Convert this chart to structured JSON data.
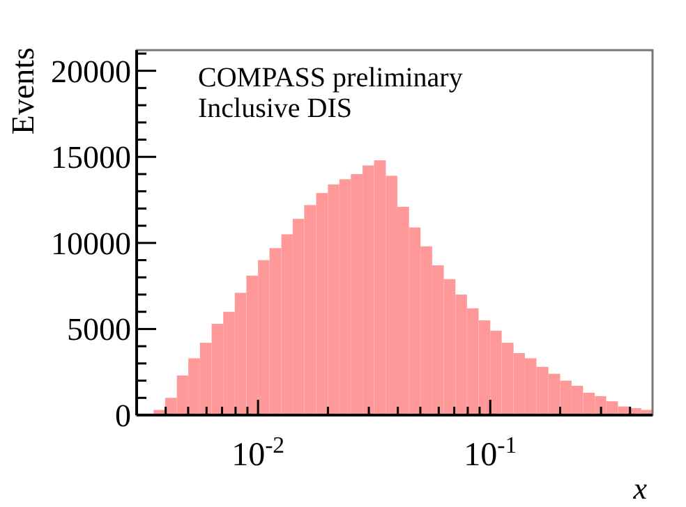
{
  "chart_data": {
    "type": "histogram",
    "xlabel": "x",
    "ylabel": "Events",
    "log": "x",
    "color": "#ff9999",
    "grid": false,
    "annotations": [
      "COMPASS preliminary",
      "Inclusive DIS"
    ],
    "xlim": [
      0.003,
      0.5
    ],
    "ylim": [
      0,
      21200
    ],
    "xticks": [
      {
        "value": 0.004,
        "label": null
      },
      {
        "value": 0.005,
        "label": null
      },
      {
        "value": 0.006,
        "label": null
      },
      {
        "value": 0.007,
        "label": null
      },
      {
        "value": 0.008,
        "label": null
      },
      {
        "value": 0.009,
        "label": null
      },
      {
        "value": 0.01,
        "label": "10$^{-2}$"
      },
      {
        "value": 0.02,
        "label": null
      },
      {
        "value": 0.03,
        "label": null
      },
      {
        "value": 0.04,
        "label": null
      },
      {
        "value": 0.05,
        "label": null
      },
      {
        "value": 0.06,
        "label": null
      },
      {
        "value": 0.07,
        "label": null
      },
      {
        "value": 0.08,
        "label": null
      },
      {
        "value": 0.09,
        "label": null
      },
      {
        "value": 0.1,
        "label": "10$^{-1}$"
      },
      {
        "value": 0.2,
        "label": null
      },
      {
        "value": 0.3,
        "label": null
      },
      {
        "value": 0.4,
        "label": null
      }
    ],
    "yticks": [
      0,
      {
        "value": 1000,
        "label": null
      },
      {
        "value": 2000,
        "label": null
      },
      {
        "value": 3000,
        "label": null
      },
      {
        "value": 4000,
        "label": null
      },
      5000,
      {
        "value": 6000,
        "label": null
      },
      {
        "value": 7000,
        "label": null
      },
      {
        "value": 8000,
        "label": null
      },
      {
        "value": 9000,
        "label": null
      },
      10000,
      {
        "value": 11000,
        "label": null
      },
      {
        "value": 12000,
        "label": null
      },
      {
        "value": 13000,
        "label": null
      },
      {
        "value": 14000,
        "label": null
      },
      15000,
      {
        "value": 16000,
        "label": null
      },
      {
        "value": 17000,
        "label": null
      },
      {
        "value": 18000,
        "label": null
      },
      {
        "value": 19000,
        "label": null
      },
      20000,
      {
        "value": 21000,
        "label": null
      }
    ],
    "bins": [
      0.00355,
      0.00398,
      0.00447,
      0.00501,
      0.00562,
      0.00631,
      0.00708,
      0.00794,
      0.00891,
      0.01,
      0.0112,
      0.0126,
      0.0141,
      0.0158,
      0.0178,
      0.02,
      0.0224,
      0.0251,
      0.0282,
      0.0316,
      0.0355,
      0.0398,
      0.0447,
      0.0501,
      0.0562,
      0.0631,
      0.0708,
      0.0794,
      0.0891,
      0.1,
      0.112,
      0.126,
      0.141,
      0.158,
      0.178,
      0.2,
      0.224,
      0.251,
      0.282,
      0.316,
      0.355,
      0.398,
      0.447,
      0.5
    ],
    "values": [
      300,
      1000,
      2300,
      3300,
      4200,
      5300,
      6000,
      7100,
      8100,
      9000,
      9700,
      10500,
      11400,
      12200,
      12900,
      13400,
      13700,
      14000,
      14500,
      14800,
      13900,
      12100,
      10900,
      9800,
      8700,
      7900,
      7000,
      6200,
      5500,
      4900,
      4200,
      3600,
      3300,
      2800,
      2400,
      2000,
      1700,
      1300,
      1100,
      800,
      500,
      400,
      300
    ]
  }
}
